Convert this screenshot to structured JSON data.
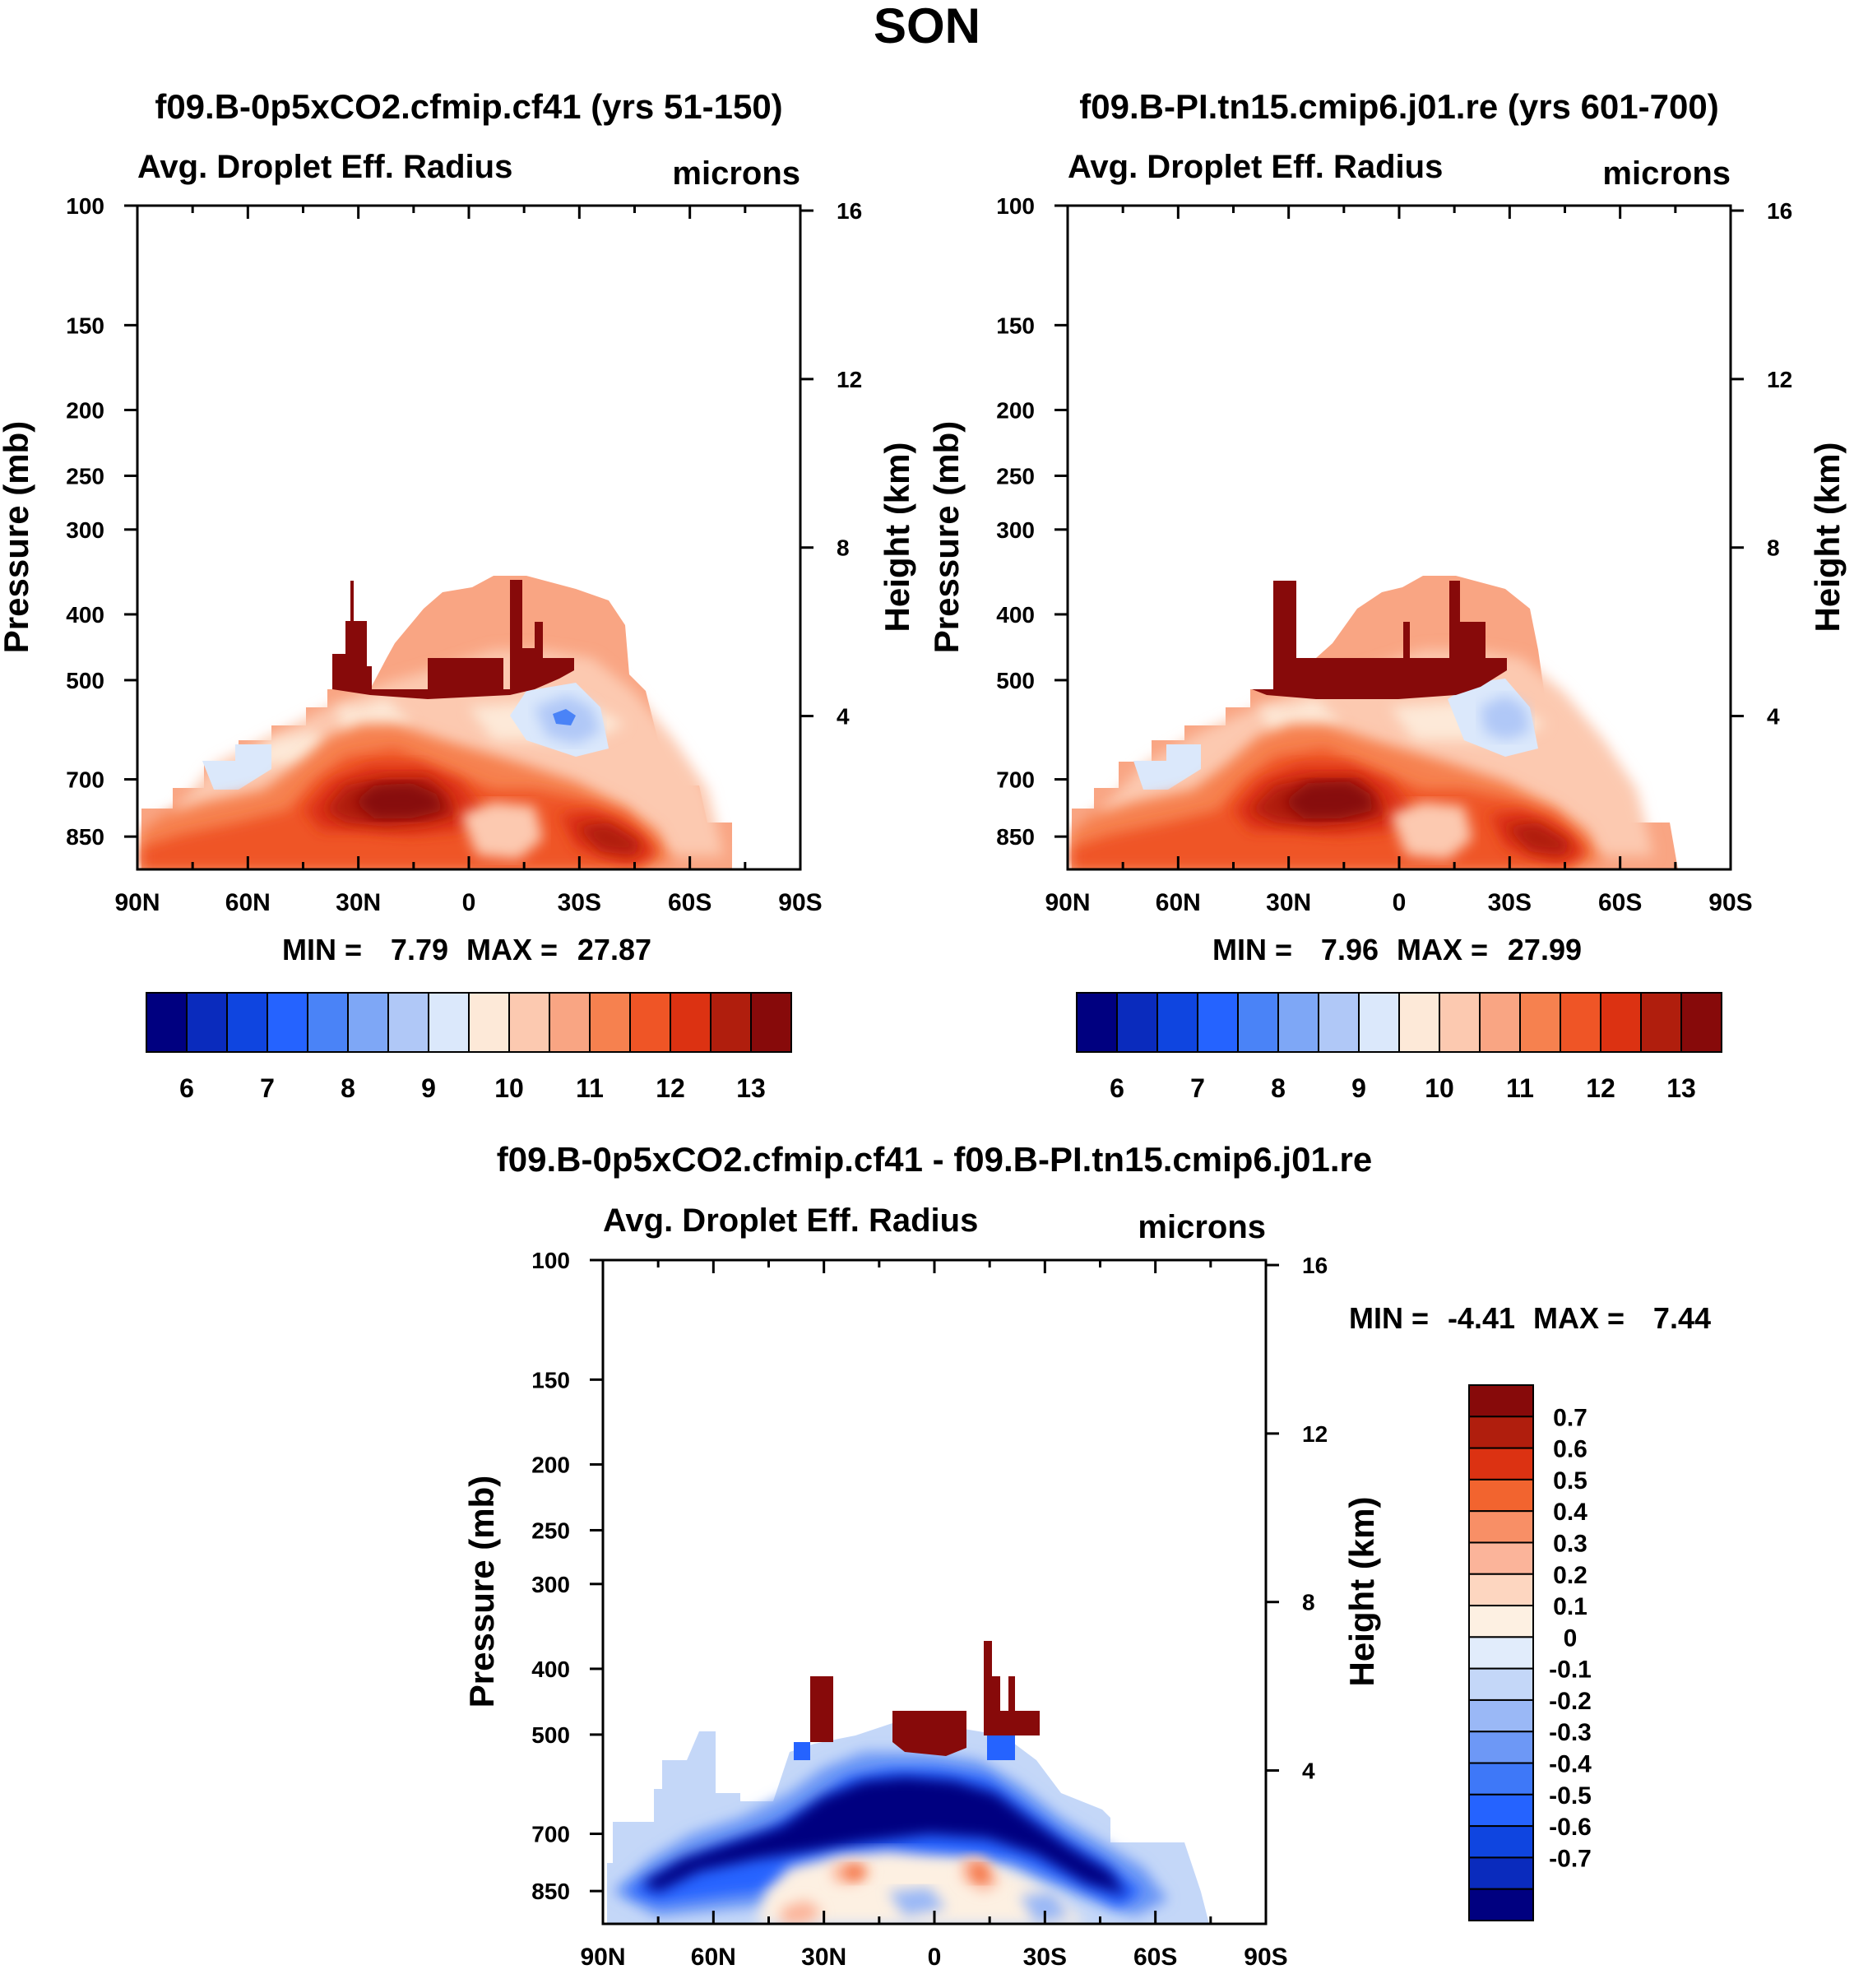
{
  "figure": {
    "title": "SON",
    "colors": {
      "abs_levels": [
        "#000080",
        "#0a2bbd",
        "#0f45e0",
        "#2563ff",
        "#4a83f7",
        "#7ea7f6",
        "#b0c8f7",
        "#dbe8fb",
        "#fde9d8",
        "#fcc9b0",
        "#f9a583",
        "#f6814f",
        "#ef5526",
        "#dc3212",
        "#b01e0d",
        "#870a0a"
      ],
      "diff_levels": [
        "#000080",
        "#0a2bbd",
        "#0f45e0",
        "#2563ff",
        "#3e78f8",
        "#6d98f6",
        "#9ab8f6",
        "#c4d7f8",
        "#e1ecfb",
        "#fdf0e2",
        "#fdd6c0",
        "#fbb49a",
        "#f88f66",
        "#f2642f",
        "#dc3212",
        "#b01e0d",
        "#870a0a"
      ]
    }
  },
  "chart_data": [
    {
      "id": "panel_left",
      "type": "heatmap",
      "title": "f09.B-0p5xCO2.cfmip.cf41 (yrs 51-150)",
      "subtitle_left": "Avg. Droplet Eff. Radius",
      "subtitle_right": "microns",
      "ylabel": "Pressure (mb)",
      "y2label": "Height (km)",
      "x_tick_labels": [
        "90N",
        "60N",
        "30N",
        "0",
        "30S",
        "60S",
        "90S"
      ],
      "y_tick_labels": [
        "100",
        "150",
        "200",
        "250",
        "300",
        "400",
        "500",
        "700",
        "850"
      ],
      "y_tick_values": [
        100,
        150,
        200,
        250,
        300,
        400,
        500,
        700,
        850
      ],
      "y2_tick_labels": [
        "16",
        "12",
        "8",
        "4"
      ],
      "y2_tick_values": [
        16,
        12,
        8,
        4
      ],
      "ylim": [
        100,
        950
      ],
      "xlim": [
        90,
        -90
      ],
      "stats_min_label": "MIN =",
      "stats_min": "7.79",
      "stats_max_label": "MAX =",
      "stats_max": "27.87",
      "colorbar_labels": [
        "6",
        "7",
        "8",
        "9",
        "10",
        "11",
        "12",
        "13"
      ],
      "levels": [
        5.5,
        6,
        6.5,
        7,
        7.5,
        8,
        8.5,
        9,
        9.5,
        10,
        10.5,
        11,
        11.5,
        12,
        12.5,
        13,
        13.5
      ],
      "lat_extent": [
        [
          86,
          930
        ],
        [
          80,
          860
        ],
        [
          68,
          800
        ],
        [
          50,
          700
        ],
        [
          40,
          620
        ],
        [
          28,
          560
        ],
        [
          20,
          555
        ],
        [
          -5,
          555
        ],
        [
          -20,
          560
        ],
        [
          -32,
          600
        ],
        [
          -45,
          700
        ],
        [
          -55,
          780
        ],
        [
          -65,
          850
        ],
        [
          -75,
          920
        ]
      ]
    },
    {
      "id": "panel_right",
      "type": "heatmap",
      "title": "f09.B-PI.tn15.cmip6.j01.re (yrs 601-700)",
      "subtitle_left": "Avg. Droplet Eff. Radius",
      "subtitle_right": "microns",
      "ylabel": "Pressure (mb)",
      "y2label": "Height (km)",
      "x_tick_labels": [
        "90N",
        "60N",
        "30N",
        "0",
        "30S",
        "60S",
        "90S"
      ],
      "y_tick_labels": [
        "100",
        "150",
        "200",
        "250",
        "300",
        "400",
        "500",
        "700",
        "850"
      ],
      "y_tick_values": [
        100,
        150,
        200,
        250,
        300,
        400,
        500,
        700,
        850
      ],
      "y2_tick_labels": [
        "16",
        "12",
        "8",
        "4"
      ],
      "y2_tick_values": [
        16,
        12,
        8,
        4
      ],
      "ylim": [
        100,
        950
      ],
      "xlim": [
        90,
        -90
      ],
      "stats_min_label": "MIN =",
      "stats_min": "7.96",
      "stats_max_label": "MAX =",
      "stats_max": "27.99",
      "colorbar_labels": [
        "6",
        "7",
        "8",
        "9",
        "10",
        "11",
        "12",
        "13"
      ],
      "levels": [
        5.5,
        6,
        6.5,
        7,
        7.5,
        8,
        8.5,
        9,
        9.5,
        10,
        10.5,
        11,
        11.5,
        12,
        12.5,
        13,
        13.5
      ]
    },
    {
      "id": "panel_diff",
      "type": "heatmap",
      "title": "f09.B-0p5xCO2.cfmip.cf41 - f09.B-PI.tn15.cmip6.j01.re",
      "subtitle_left": "Avg. Droplet Eff. Radius",
      "subtitle_right": "microns",
      "ylabel": "Pressure (mb)",
      "y2label": "Height (km)",
      "x_tick_labels": [
        "90N",
        "60N",
        "30N",
        "0",
        "30S",
        "60S",
        "90S"
      ],
      "y_tick_labels": [
        "100",
        "150",
        "200",
        "250",
        "300",
        "400",
        "500",
        "700",
        "850"
      ],
      "y_tick_values": [
        100,
        150,
        200,
        250,
        300,
        400,
        500,
        700,
        850
      ],
      "y2_tick_labels": [
        "16",
        "12",
        "8",
        "4"
      ],
      "y2_tick_values": [
        16,
        12,
        8,
        4
      ],
      "ylim": [
        100,
        950
      ],
      "xlim": [
        90,
        -90
      ],
      "stats_min_label": "MIN =",
      "stats_min": "-4.41",
      "stats_max_label": "MAX =",
      "stats_max": "7.44",
      "colorbar_labels": [
        "0.7",
        "0.6",
        "0.5",
        "0.4",
        "0.3",
        "0.2",
        "0.1",
        "0",
        "-0.1",
        "-0.2",
        "-0.3",
        "-0.4",
        "-0.5",
        "-0.6",
        "-0.7"
      ],
      "levels": [
        -0.7,
        -0.6,
        -0.5,
        -0.4,
        -0.3,
        -0.2,
        -0.1,
        0,
        0.1,
        0.2,
        0.3,
        0.4,
        0.5,
        0.6,
        0.7
      ]
    }
  ]
}
